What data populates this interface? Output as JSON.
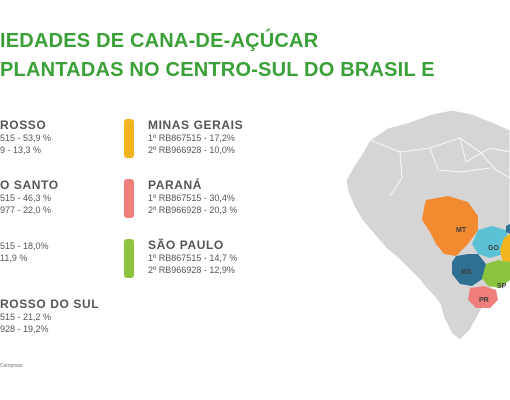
{
  "title": {
    "line1": "IEDADES DE CANA-DE-AÇÚCAR",
    "line2": "PLANTADAS NO CENTRO-SUL DO BRASIL E"
  },
  "states": {
    "mato_grosso": {
      "name": "ROSSO",
      "line1": "515 - 53,9 %",
      "line2": "9 - 13,3 %"
    },
    "espirito_santo": {
      "name": "O SANTO",
      "line1": "515 - 46,3 %",
      "line2": "977 - 22,0 %"
    },
    "goias": {
      "name": "",
      "line1": "515 - 18,0%",
      "line2": "11,9 %"
    },
    "mato_grosso_do_sul": {
      "name": "ROSSO DO SUL",
      "line1": "515 - 21,2 %",
      "line2": "928 - 19,2%"
    },
    "minas_gerais": {
      "name": "MINAS GERAIS",
      "line1": "1º  RB867515 - 17,2%",
      "line2": "2º RB966928 - 10,0%",
      "color": "#f2b41f"
    },
    "parana": {
      "name": "PARANÁ",
      "line1": "1º  RB867515 - 30,4%",
      "line2": "2º  RB966928 - 20,3 %",
      "color": "#ef7f7a"
    },
    "sao_paulo": {
      "name": "SÃO PAULO",
      "line1": "1º  RB867515 - 14,7 %",
      "line2": "2º  RB966928 - 12,9%",
      "color": "#8cc43f"
    }
  },
  "map": {
    "labels": {
      "mt": "MT",
      "go": "GO",
      "ms": "MS",
      "sp": "SP",
      "pr": "PR"
    },
    "colors": {
      "country": "#d5d5d5",
      "mt": "#f28a30",
      "go": "#5bc2d6",
      "ms": "#2f6f91",
      "sp": "#8cc43f",
      "pr": "#ef7f7a",
      "mg": "#f2b41f",
      "es": "#2f6f91"
    }
  },
  "source": "Campinas"
}
